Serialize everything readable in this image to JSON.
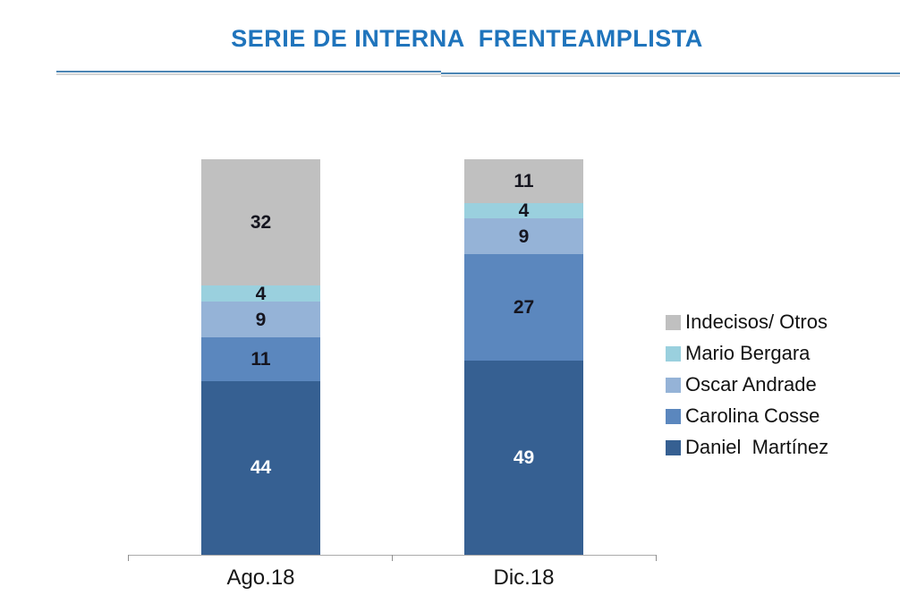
{
  "title": "SERIE DE INTERNA  FRENTEAMPLISTA",
  "chart_data": {
    "type": "bar",
    "stacked": true,
    "categories": [
      "Ago.18",
      "Dic.18"
    ],
    "series": [
      {
        "name": "Daniel  Martínez",
        "values": [
          44,
          49
        ],
        "color": "#366092",
        "label_color": "#ffffff"
      },
      {
        "name": "Carolina Cosse",
        "values": [
          11,
          27
        ],
        "color": "#5b87be",
        "label_color": "#15151f"
      },
      {
        "name": "Oscar Andrade",
        "values": [
          9,
          9
        ],
        "color": "#95b3d7",
        "label_color": "#15151f"
      },
      {
        "name": "Mario Bergara",
        "values": [
          4,
          4
        ],
        "color": "#9ad0de",
        "label_color": "#15151f"
      },
      {
        "name": "Indecisos/ Otros",
        "values": [
          32,
          11
        ],
        "color": "#c0c0c0",
        "label_color": "#15151f"
      }
    ],
    "legend_order_top_to_bottom": [
      "Indecisos/ Otros",
      "Mario Bergara",
      "Oscar Andrade",
      "Carolina Cosse",
      "Daniel  Martínez"
    ],
    "ylim": [
      0,
      100
    ],
    "grid": false,
    "legend_position": "right",
    "data_labels": true
  },
  "colors": {
    "title": "#1f74bc",
    "divider_blue": "#4c86b4",
    "divider_gray": "#d4d4d4",
    "axis_line": "#ababab",
    "axis_tick": "#8f8f8f"
  }
}
